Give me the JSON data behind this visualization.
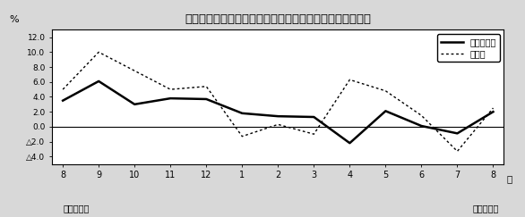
{
  "title": "第２図　所定外労働時間対前年比の推移（規模５人以上）",
  "x_labels": [
    "8",
    "9",
    "10",
    "11",
    "12",
    "1",
    "2",
    "3",
    "4",
    "5",
    "6",
    "7",
    "8"
  ],
  "x_bottom_left": "平成１８年",
  "x_bottom_right": "平成１９年",
  "x_right_label": "月",
  "ylabel": "%",
  "ylim": [
    -5.0,
    13.0
  ],
  "yticks": [
    -4.0,
    -2.0,
    0.0,
    2.0,
    4.0,
    6.0,
    8.0,
    10.0,
    12.0
  ],
  "ytick_labels_neg": [
    "△4.0",
    "△2.0"
  ],
  "ytick_labels_pos": [
    "0.0",
    "2.0",
    "4.0",
    "6.0",
    "8.0",
    "10.0",
    "12.0"
  ],
  "series_solid_label": "調査産業計",
  "series_dotted_label": "製造業",
  "series_solid": [
    3.5,
    6.1,
    3.0,
    3.8,
    3.7,
    1.8,
    1.4,
    1.3,
    -2.2,
    2.1,
    0.1,
    -0.9,
    2.0
  ],
  "series_dotted": [
    5.0,
    10.0,
    7.5,
    5.0,
    5.4,
    -1.3,
    0.3,
    -1.0,
    6.3,
    4.8,
    1.5,
    -3.3,
    2.5
  ],
  "solid_color": "#000000",
  "dotted_color": "#000000",
  "background_color": "#d8d8d8",
  "plot_bg_color": "#ffffff",
  "border_color": "#000000"
}
